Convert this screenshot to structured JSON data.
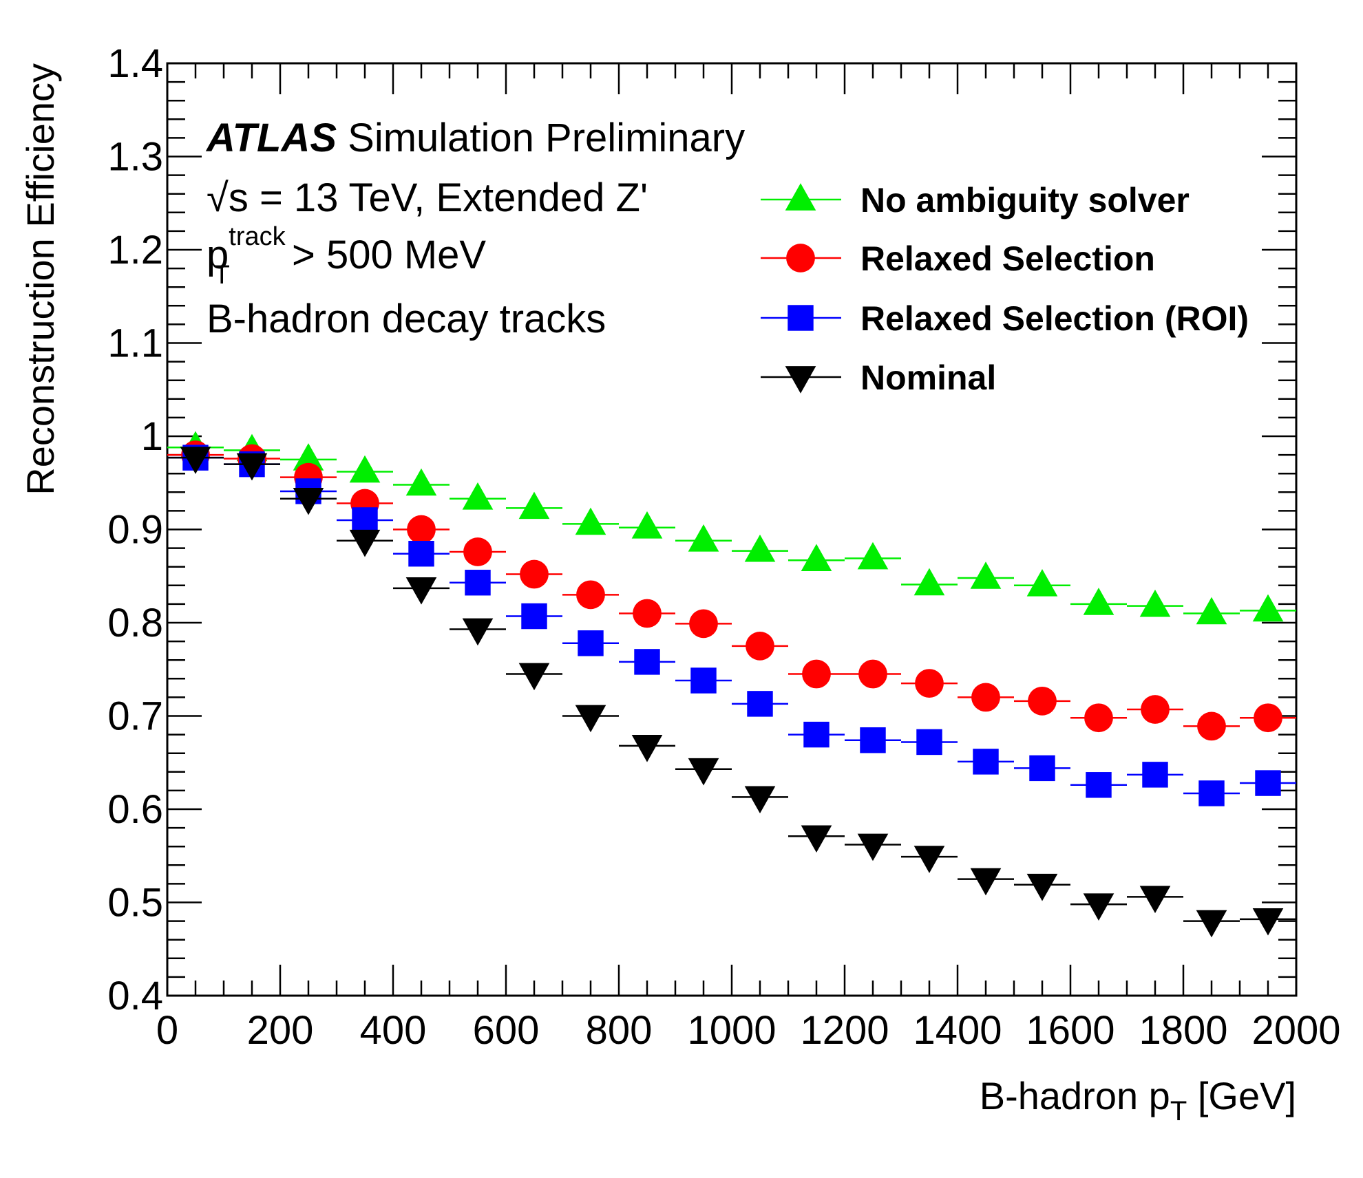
{
  "chart_data": {
    "type": "scatter",
    "xlabel": "B-hadron p",
    "xlabel_sub": "T",
    "xlabel_unit": " [GeV]",
    "ylabel": "Reconstruction Efficiency",
    "xlim": [
      0,
      2000
    ],
    "ylim": [
      0.4,
      1.4
    ],
    "x_ticks": [
      0,
      200,
      400,
      600,
      800,
      1000,
      1200,
      1400,
      1600,
      1800,
      2000
    ],
    "y_ticks": [
      0.4,
      0.5,
      0.6,
      0.7,
      0.8,
      0.9,
      1,
      1.1,
      1.2,
      1.3,
      1.4
    ],
    "y_tick_labels": [
      "0.4",
      "0.5",
      "0.6",
      "0.7",
      "0.8",
      "0.9",
      "1",
      "1.1",
      "1.2",
      "1.3",
      "1.4"
    ],
    "grid": false,
    "legend_position": "top-right",
    "bin_width": 100,
    "x": [
      50,
      150,
      250,
      350,
      450,
      550,
      650,
      750,
      850,
      950,
      1050,
      1150,
      1250,
      1350,
      1450,
      1550,
      1650,
      1750,
      1850,
      1950
    ],
    "series": [
      {
        "name": "No ambiguity solver",
        "color": "#00ee00",
        "marker": "triangle-up",
        "values": [
          0.988,
          0.985,
          0.975,
          0.962,
          0.948,
          0.933,
          0.923,
          0.906,
          0.902,
          0.888,
          0.877,
          0.867,
          0.869,
          0.841,
          0.848,
          0.84,
          0.82,
          0.818,
          0.81,
          0.813
        ]
      },
      {
        "name": "Relaxed Selection",
        "color": "#ff0000",
        "marker": "circle",
        "values": [
          0.98,
          0.976,
          0.956,
          0.928,
          0.9,
          0.876,
          0.852,
          0.83,
          0.81,
          0.799,
          0.775,
          0.745,
          0.745,
          0.735,
          0.72,
          0.716,
          0.698,
          0.707,
          0.689,
          0.698
        ]
      },
      {
        "name": "Relaxed Selection (ROI)",
        "color": "#0000ff",
        "marker": "square",
        "values": [
          0.977,
          0.97,
          0.941,
          0.91,
          0.874,
          0.843,
          0.807,
          0.778,
          0.758,
          0.738,
          0.713,
          0.68,
          0.674,
          0.672,
          0.651,
          0.644,
          0.626,
          0.637,
          0.617,
          0.628
        ]
      },
      {
        "name": "Nominal",
        "color": "#000000",
        "marker": "triangle-down",
        "values": [
          0.977,
          0.97,
          0.933,
          0.888,
          0.837,
          0.793,
          0.745,
          0.7,
          0.668,
          0.643,
          0.613,
          0.571,
          0.562,
          0.549,
          0.525,
          0.519,
          0.498,
          0.506,
          0.48,
          0.482
        ]
      }
    ]
  },
  "annotations": {
    "atlas": "ATLAS",
    "atlas_rest": " Simulation Preliminary",
    "line2": "√s = 13 TeV, Extended Z'",
    "line3_p": "p",
    "line3_sup": "track",
    "line3_sub": "T",
    "line3_rest": " > 500 MeV",
    "line4": "B-hadron decay tracks"
  }
}
